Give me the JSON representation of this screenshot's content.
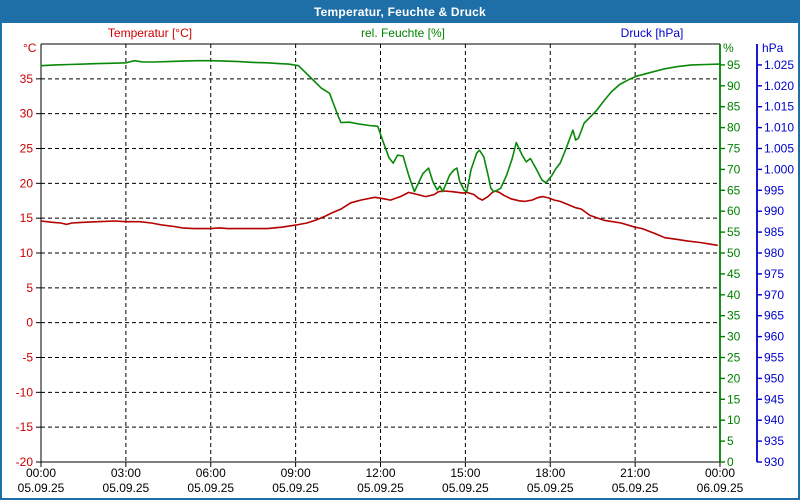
{
  "window": {
    "title": "Temperatur, Feuchte & Druck"
  },
  "colors": {
    "titlebar_bg": "#1e6fa8",
    "window_border": "#1e6fa8",
    "background": "#ffffff",
    "grid": "#000000",
    "temperature_accent": "#cc0000",
    "temperature_line": "#b40000",
    "humidity_accent": "#008000",
    "humidity_line": "#098909",
    "pressure_accent": "#0000cc"
  },
  "chart_data": {
    "type": "line",
    "title": "Temperatur, Feuchte & Druck",
    "grid": {
      "horizontal_at_temperature_ticks": true,
      "vertical_at_time_ticks": true,
      "style": "dashed"
    },
    "x_axis": {
      "range_hours": [
        0,
        24
      ],
      "tick_interval_hours": 3,
      "label_times": [
        "00:00",
        "03:00",
        "06:00",
        "09:00",
        "12:00",
        "15:00",
        "18:00",
        "21:00",
        "00:00"
      ],
      "label_dates": [
        "05.09.25",
        "05.09.25",
        "05.09.25",
        "05.09.25",
        "05.09.25",
        "05.09.25",
        "05.09.25",
        "05.09.25",
        "06.09.25"
      ]
    },
    "y_axes": {
      "temperature": {
        "title": "Temperatur [°C]",
        "unit": "°C",
        "color": "#cc0000",
        "min": -20,
        "max": 40,
        "tick_step": 5,
        "tick_values": [
          35,
          30,
          25,
          20,
          15,
          10,
          5,
          0,
          -5,
          -10,
          -15,
          -20
        ],
        "tick_labels": [
          "35",
          "30",
          "25",
          "20",
          "15",
          "10",
          "5",
          "0",
          "-5",
          "-10",
          "-15",
          "-20"
        ]
      },
      "humidity": {
        "title": "rel. Feuchte [%]",
        "unit": "%",
        "color": "#008000",
        "min": 0,
        "max": 100,
        "tick_step": 5,
        "tick_values": [
          95,
          90,
          85,
          80,
          75,
          70,
          65,
          60,
          55,
          50,
          45,
          40,
          35,
          30,
          25,
          20,
          15,
          10,
          5,
          0
        ],
        "tick_labels": [
          "95",
          "90",
          "85",
          "80",
          "75",
          "70",
          "65",
          "60",
          "55",
          "50",
          "45",
          "40",
          "35",
          "30",
          "25",
          "20",
          "15",
          "10",
          "5",
          "0"
        ]
      },
      "pressure": {
        "title": "Druck [hPa]",
        "unit": "hPa",
        "color": "#0000cc",
        "min": 930,
        "max": 1030,
        "tick_step": 5,
        "tick_values": [
          1025,
          1020,
          1015,
          1010,
          1005,
          1000,
          995,
          990,
          985,
          980,
          975,
          970,
          965,
          960,
          955,
          950,
          945,
          940,
          935,
          930
        ],
        "tick_labels": [
          "1.025",
          "1.020",
          "1.015",
          "1.010",
          "1.005",
          "1.000",
          "995",
          "990",
          "985",
          "980",
          "975",
          "970",
          "965",
          "960",
          "955",
          "950",
          "945",
          "940",
          "935",
          "930"
        ]
      }
    },
    "series": [
      {
        "name": "Temperatur",
        "axis": "temperature",
        "color": "#b40000",
        "points_hour_value": [
          [
            0,
            14.6
          ],
          [
            0.4,
            14.4
          ],
          [
            0.7,
            14.3
          ],
          [
            0.9,
            14.1
          ],
          [
            1.1,
            14.3
          ],
          [
            1.5,
            14.4
          ],
          [
            2,
            14.5
          ],
          [
            2.6,
            14.6
          ],
          [
            3,
            14.5
          ],
          [
            3.5,
            14.5
          ],
          [
            3.9,
            14.3
          ],
          [
            4.3,
            14.0
          ],
          [
            4.7,
            13.8
          ],
          [
            5,
            13.6
          ],
          [
            5.4,
            13.5
          ],
          [
            6,
            13.5
          ],
          [
            6.3,
            13.6
          ],
          [
            6.6,
            13.5
          ],
          [
            7,
            13.5
          ],
          [
            7.5,
            13.5
          ],
          [
            8,
            13.5
          ],
          [
            8.5,
            13.7
          ],
          [
            9,
            14.0
          ],
          [
            9.4,
            14.3
          ],
          [
            9.7,
            14.7
          ],
          [
            10,
            15.2
          ],
          [
            10.3,
            15.8
          ],
          [
            10.6,
            16.3
          ],
          [
            10.95,
            17.2
          ],
          [
            11.3,
            17.6
          ],
          [
            11.8,
            18.0
          ],
          [
            12.1,
            17.8
          ],
          [
            12.35,
            17.6
          ],
          [
            12.7,
            18.1
          ],
          [
            13.0,
            18.7
          ],
          [
            13.3,
            18.4
          ],
          [
            13.6,
            18.1
          ],
          [
            13.9,
            18.4
          ],
          [
            14.05,
            18.8
          ],
          [
            14.25,
            18.9
          ],
          [
            14.55,
            18.8
          ],
          [
            14.75,
            18.7
          ],
          [
            14.9,
            18.6
          ],
          [
            15.05,
            18.7
          ],
          [
            15.3,
            18.4
          ],
          [
            15.45,
            17.9
          ],
          [
            15.6,
            17.6
          ],
          [
            15.8,
            18.1
          ],
          [
            15.95,
            18.7
          ],
          [
            16.05,
            18.9
          ],
          [
            16.2,
            18.7
          ],
          [
            16.35,
            18.3
          ],
          [
            16.6,
            17.8
          ],
          [
            16.9,
            17.5
          ],
          [
            17.1,
            17.4
          ],
          [
            17.35,
            17.6
          ],
          [
            17.6,
            18.0
          ],
          [
            17.75,
            18.1
          ],
          [
            17.95,
            17.9
          ],
          [
            18.15,
            17.6
          ],
          [
            18.35,
            17.4
          ],
          [
            18.6,
            17.0
          ],
          [
            18.9,
            16.5
          ],
          [
            19.1,
            16.3
          ],
          [
            19.4,
            15.4
          ],
          [
            19.9,
            14.7
          ],
          [
            20.5,
            14.3
          ],
          [
            21.0,
            13.7
          ],
          [
            21.25,
            13.5
          ],
          [
            21.7,
            12.8
          ],
          [
            22.05,
            12.2
          ],
          [
            22.4,
            12.0
          ],
          [
            22.9,
            11.7
          ],
          [
            23.3,
            11.5
          ],
          [
            23.75,
            11.2
          ],
          [
            23.9,
            11.1
          ]
        ]
      },
      {
        "name": "rel. Feuchte",
        "axis": "humidity",
        "color": "#098909",
        "points_hour_value": [
          [
            0,
            94.8
          ],
          [
            0.5,
            95.0
          ],
          [
            1,
            95.1
          ],
          [
            1.5,
            95.2
          ],
          [
            2,
            95.3
          ],
          [
            2.6,
            95.4
          ],
          [
            3,
            95.5
          ],
          [
            3.3,
            96.0
          ],
          [
            3.6,
            95.7
          ],
          [
            4,
            95.7
          ],
          [
            4.5,
            95.8
          ],
          [
            5,
            95.9
          ],
          [
            5.5,
            96.0
          ],
          [
            6,
            96.0
          ],
          [
            6.5,
            95.9
          ],
          [
            7,
            95.8
          ],
          [
            7.5,
            95.6
          ],
          [
            8,
            95.5
          ],
          [
            8.4,
            95.3
          ],
          [
            8.75,
            95.2
          ],
          [
            9.1,
            94.8
          ],
          [
            9.3,
            93.5
          ],
          [
            9.6,
            91.5
          ],
          [
            9.9,
            89.5
          ],
          [
            10.2,
            88.2
          ],
          [
            10.35,
            85.5
          ],
          [
            10.5,
            82.8
          ],
          [
            10.6,
            81.2
          ],
          [
            10.9,
            81.3
          ],
          [
            11.2,
            80.9
          ],
          [
            11.6,
            80.5
          ],
          [
            11.9,
            80.3
          ],
          [
            12.1,
            76.5
          ],
          [
            12.3,
            72.8
          ],
          [
            12.45,
            71.5
          ],
          [
            12.6,
            73.4
          ],
          [
            12.8,
            73.2
          ],
          [
            13.0,
            68.5
          ],
          [
            13.2,
            64.7
          ],
          [
            13.5,
            69.0
          ],
          [
            13.7,
            70.3
          ],
          [
            13.85,
            67.1
          ],
          [
            14.0,
            65.1
          ],
          [
            14.1,
            66.0
          ],
          [
            14.2,
            64.7
          ],
          [
            14.45,
            68.7
          ],
          [
            14.6,
            69.9
          ],
          [
            14.7,
            70.3
          ],
          [
            14.8,
            67.1
          ],
          [
            14.95,
            65.1
          ],
          [
            15.05,
            64.7
          ],
          [
            15.2,
            69.9
          ],
          [
            15.4,
            73.9
          ],
          [
            15.5,
            74.6
          ],
          [
            15.65,
            73.0
          ],
          [
            15.8,
            68.7
          ],
          [
            15.9,
            65.5
          ],
          [
            16.0,
            64.7
          ],
          [
            16.1,
            64.9
          ],
          [
            16.25,
            65.5
          ],
          [
            16.45,
            68.5
          ],
          [
            16.65,
            72.5
          ],
          [
            16.8,
            76.4
          ],
          [
            17.0,
            73.5
          ],
          [
            17.15,
            71.8
          ],
          [
            17.3,
            72.6
          ],
          [
            17.5,
            70.2
          ],
          [
            17.7,
            67.5
          ],
          [
            17.85,
            66.8
          ],
          [
            18.05,
            68.5
          ],
          [
            18.2,
            70.2
          ],
          [
            18.35,
            71.5
          ],
          [
            18.55,
            74.8
          ],
          [
            18.7,
            77.6
          ],
          [
            18.8,
            79.4
          ],
          [
            18.9,
            77.0
          ],
          [
            19.0,
            77.5
          ],
          [
            19.2,
            81.1
          ],
          [
            19.45,
            82.8
          ],
          [
            19.65,
            84.2
          ],
          [
            19.9,
            86.4
          ],
          [
            20.15,
            88.5
          ],
          [
            20.45,
            90.3
          ],
          [
            20.75,
            91.4
          ],
          [
            21.05,
            92.3
          ],
          [
            21.5,
            93.1
          ],
          [
            22.0,
            94.0
          ],
          [
            22.5,
            94.6
          ],
          [
            23.0,
            95.0
          ],
          [
            23.5,
            95.1
          ],
          [
            24,
            95.2
          ]
        ]
      },
      {
        "name": "Druck",
        "axis": "pressure",
        "color": "#0000cc",
        "points_hour_value": []
      }
    ]
  }
}
